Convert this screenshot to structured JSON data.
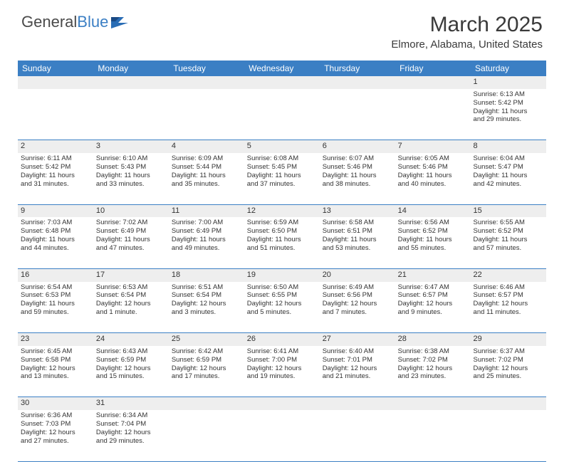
{
  "logo": {
    "text1": "General",
    "text2": "Blue"
  },
  "title": "March 2025",
  "location": "Elmore, Alabama, United States",
  "colors": {
    "header_bg": "#3b7fc4",
    "header_text": "#ffffff",
    "daynum_bg": "#eeeeee",
    "border": "#3b7fc4",
    "body_text": "#333333"
  },
  "weekdays": [
    "Sunday",
    "Monday",
    "Tuesday",
    "Wednesday",
    "Thursday",
    "Friday",
    "Saturday"
  ],
  "weeks": [
    [
      null,
      null,
      null,
      null,
      null,
      null,
      {
        "n": "1",
        "sr": "Sunrise: 6:13 AM",
        "ss": "Sunset: 5:42 PM",
        "dl1": "Daylight: 11 hours",
        "dl2": "and 29 minutes."
      }
    ],
    [
      {
        "n": "2",
        "sr": "Sunrise: 6:11 AM",
        "ss": "Sunset: 5:42 PM",
        "dl1": "Daylight: 11 hours",
        "dl2": "and 31 minutes."
      },
      {
        "n": "3",
        "sr": "Sunrise: 6:10 AM",
        "ss": "Sunset: 5:43 PM",
        "dl1": "Daylight: 11 hours",
        "dl2": "and 33 minutes."
      },
      {
        "n": "4",
        "sr": "Sunrise: 6:09 AM",
        "ss": "Sunset: 5:44 PM",
        "dl1": "Daylight: 11 hours",
        "dl2": "and 35 minutes."
      },
      {
        "n": "5",
        "sr": "Sunrise: 6:08 AM",
        "ss": "Sunset: 5:45 PM",
        "dl1": "Daylight: 11 hours",
        "dl2": "and 37 minutes."
      },
      {
        "n": "6",
        "sr": "Sunrise: 6:07 AM",
        "ss": "Sunset: 5:46 PM",
        "dl1": "Daylight: 11 hours",
        "dl2": "and 38 minutes."
      },
      {
        "n": "7",
        "sr": "Sunrise: 6:05 AM",
        "ss": "Sunset: 5:46 PM",
        "dl1": "Daylight: 11 hours",
        "dl2": "and 40 minutes."
      },
      {
        "n": "8",
        "sr": "Sunrise: 6:04 AM",
        "ss": "Sunset: 5:47 PM",
        "dl1": "Daylight: 11 hours",
        "dl2": "and 42 minutes."
      }
    ],
    [
      {
        "n": "9",
        "sr": "Sunrise: 7:03 AM",
        "ss": "Sunset: 6:48 PM",
        "dl1": "Daylight: 11 hours",
        "dl2": "and 44 minutes."
      },
      {
        "n": "10",
        "sr": "Sunrise: 7:02 AM",
        "ss": "Sunset: 6:49 PM",
        "dl1": "Daylight: 11 hours",
        "dl2": "and 47 minutes."
      },
      {
        "n": "11",
        "sr": "Sunrise: 7:00 AM",
        "ss": "Sunset: 6:49 PM",
        "dl1": "Daylight: 11 hours",
        "dl2": "and 49 minutes."
      },
      {
        "n": "12",
        "sr": "Sunrise: 6:59 AM",
        "ss": "Sunset: 6:50 PM",
        "dl1": "Daylight: 11 hours",
        "dl2": "and 51 minutes."
      },
      {
        "n": "13",
        "sr": "Sunrise: 6:58 AM",
        "ss": "Sunset: 6:51 PM",
        "dl1": "Daylight: 11 hours",
        "dl2": "and 53 minutes."
      },
      {
        "n": "14",
        "sr": "Sunrise: 6:56 AM",
        "ss": "Sunset: 6:52 PM",
        "dl1": "Daylight: 11 hours",
        "dl2": "and 55 minutes."
      },
      {
        "n": "15",
        "sr": "Sunrise: 6:55 AM",
        "ss": "Sunset: 6:52 PM",
        "dl1": "Daylight: 11 hours",
        "dl2": "and 57 minutes."
      }
    ],
    [
      {
        "n": "16",
        "sr": "Sunrise: 6:54 AM",
        "ss": "Sunset: 6:53 PM",
        "dl1": "Daylight: 11 hours",
        "dl2": "and 59 minutes."
      },
      {
        "n": "17",
        "sr": "Sunrise: 6:53 AM",
        "ss": "Sunset: 6:54 PM",
        "dl1": "Daylight: 12 hours",
        "dl2": "and 1 minute."
      },
      {
        "n": "18",
        "sr": "Sunrise: 6:51 AM",
        "ss": "Sunset: 6:54 PM",
        "dl1": "Daylight: 12 hours",
        "dl2": "and 3 minutes."
      },
      {
        "n": "19",
        "sr": "Sunrise: 6:50 AM",
        "ss": "Sunset: 6:55 PM",
        "dl1": "Daylight: 12 hours",
        "dl2": "and 5 minutes."
      },
      {
        "n": "20",
        "sr": "Sunrise: 6:49 AM",
        "ss": "Sunset: 6:56 PM",
        "dl1": "Daylight: 12 hours",
        "dl2": "and 7 minutes."
      },
      {
        "n": "21",
        "sr": "Sunrise: 6:47 AM",
        "ss": "Sunset: 6:57 PM",
        "dl1": "Daylight: 12 hours",
        "dl2": "and 9 minutes."
      },
      {
        "n": "22",
        "sr": "Sunrise: 6:46 AM",
        "ss": "Sunset: 6:57 PM",
        "dl1": "Daylight: 12 hours",
        "dl2": "and 11 minutes."
      }
    ],
    [
      {
        "n": "23",
        "sr": "Sunrise: 6:45 AM",
        "ss": "Sunset: 6:58 PM",
        "dl1": "Daylight: 12 hours",
        "dl2": "and 13 minutes."
      },
      {
        "n": "24",
        "sr": "Sunrise: 6:43 AM",
        "ss": "Sunset: 6:59 PM",
        "dl1": "Daylight: 12 hours",
        "dl2": "and 15 minutes."
      },
      {
        "n": "25",
        "sr": "Sunrise: 6:42 AM",
        "ss": "Sunset: 6:59 PM",
        "dl1": "Daylight: 12 hours",
        "dl2": "and 17 minutes."
      },
      {
        "n": "26",
        "sr": "Sunrise: 6:41 AM",
        "ss": "Sunset: 7:00 PM",
        "dl1": "Daylight: 12 hours",
        "dl2": "and 19 minutes."
      },
      {
        "n": "27",
        "sr": "Sunrise: 6:40 AM",
        "ss": "Sunset: 7:01 PM",
        "dl1": "Daylight: 12 hours",
        "dl2": "and 21 minutes."
      },
      {
        "n": "28",
        "sr": "Sunrise: 6:38 AM",
        "ss": "Sunset: 7:02 PM",
        "dl1": "Daylight: 12 hours",
        "dl2": "and 23 minutes."
      },
      {
        "n": "29",
        "sr": "Sunrise: 6:37 AM",
        "ss": "Sunset: 7:02 PM",
        "dl1": "Daylight: 12 hours",
        "dl2": "and 25 minutes."
      }
    ],
    [
      {
        "n": "30",
        "sr": "Sunrise: 6:36 AM",
        "ss": "Sunset: 7:03 PM",
        "dl1": "Daylight: 12 hours",
        "dl2": "and 27 minutes."
      },
      {
        "n": "31",
        "sr": "Sunrise: 6:34 AM",
        "ss": "Sunset: 7:04 PM",
        "dl1": "Daylight: 12 hours",
        "dl2": "and 29 minutes."
      },
      null,
      null,
      null,
      null,
      null
    ]
  ]
}
